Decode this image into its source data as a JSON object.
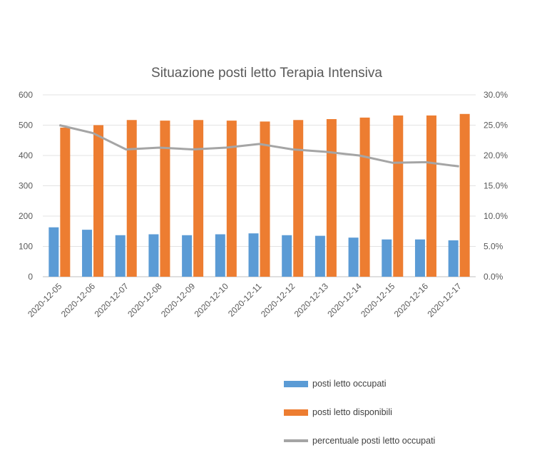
{
  "chart_data": {
    "type": "bar",
    "title": "Situazione posti letto  Terapia Intensiva",
    "categories": [
      "2020-12-05",
      "2020-12-06",
      "2020-12-07",
      "2020-12-08",
      "2020-12-09",
      "2020-12-10",
      "2020-12-11",
      "2020-12-12",
      "2020-12-13",
      "2020-12-14",
      "2020-12-15",
      "2020-12-16",
      "2020-12-17"
    ],
    "series": [
      {
        "name": "posti letto occupati",
        "kind": "bar",
        "axis": "left",
        "color": "#5B9BD5",
        "values": [
          163,
          155,
          137,
          140,
          137,
          140,
          143,
          137,
          135,
          129,
          123,
          123,
          120
        ]
      },
      {
        "name": "posti letto disponibili",
        "kind": "bar",
        "axis": "left",
        "color": "#ED7D31",
        "values": [
          492,
          500,
          517,
          515,
          517,
          515,
          512,
          517,
          520,
          525,
          532,
          532,
          537
        ]
      },
      {
        "name": "percentuale posti letto occupati",
        "kind": "line",
        "axis": "right",
        "color": "#A5A5A5",
        "values": [
          0.25,
          0.237,
          0.21,
          0.213,
          0.21,
          0.213,
          0.219,
          0.21,
          0.206,
          0.2,
          0.188,
          0.189,
          0.182
        ]
      }
    ],
    "y_left": {
      "min": 0,
      "max": 600,
      "ticks": [
        "0",
        "100",
        "200",
        "300",
        "400",
        "500",
        "600"
      ]
    },
    "y_right": {
      "min": 0,
      "max": 0.3,
      "ticks": [
        "0.0%",
        "5.0%",
        "10.0%",
        "15.0%",
        "20.0%",
        "25.0%",
        "30.0%"
      ]
    },
    "grid": true,
    "legend_position": "bottom-right"
  }
}
